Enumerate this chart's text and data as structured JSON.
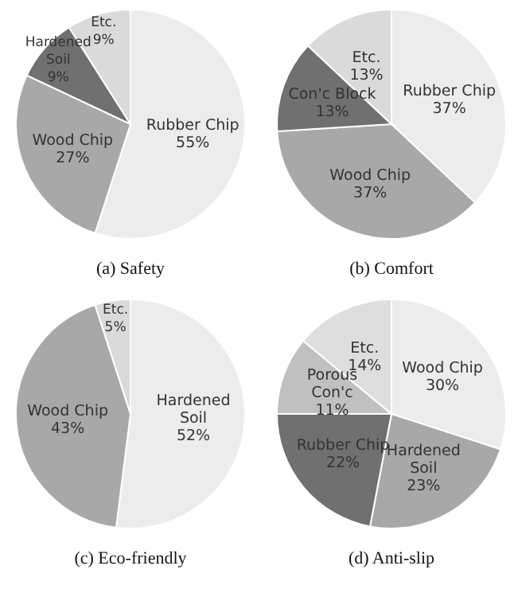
{
  "chart_data": [
    {
      "type": "pie",
      "title": "(a)  Safety",
      "categories": [
        "Rubber Chip",
        "Wood Chip",
        "Hardened Soil",
        "Etc."
      ],
      "values": [
        55,
        27,
        9,
        9
      ],
      "value_labels": [
        "55%",
        "27%",
        "9%",
        "9%"
      ],
      "colors": [
        "#ececec",
        "#a8a8a8",
        "#707070",
        "#dadada"
      ]
    },
    {
      "type": "pie",
      "title": "(b)  Comfort",
      "categories": [
        "Rubber Chip",
        "Wood Chip",
        "Con'c Block",
        "Etc."
      ],
      "values": [
        37,
        37,
        13,
        13
      ],
      "value_labels": [
        "37%",
        "37%",
        "13%",
        "13%"
      ],
      "colors": [
        "#ececec",
        "#a8a8a8",
        "#707070",
        "#dadada"
      ]
    },
    {
      "type": "pie",
      "title": "(c)  Eco-friendly",
      "categories": [
        "Hardened Soil",
        "Wood Chip",
        "Etc."
      ],
      "values": [
        52,
        43,
        5
      ],
      "value_labels": [
        "52%",
        "43%",
        "5%"
      ],
      "colors": [
        "#ececec",
        "#a8a8a8",
        "#dadada"
      ]
    },
    {
      "type": "pie",
      "title": "(d)  Anti-slip",
      "categories": [
        "Wood Chip",
        "Hardened Soil",
        "Rubber Chip",
        "Porous Con'c",
        "Etc."
      ],
      "values": [
        30,
        23,
        22,
        11,
        14
      ],
      "value_labels": [
        "30%",
        "23%",
        "22%",
        "11%",
        "14%"
      ],
      "colors": [
        "#ececec",
        "#a8a8a8",
        "#707070",
        "#c0c0c0",
        "#dedede"
      ]
    }
  ]
}
